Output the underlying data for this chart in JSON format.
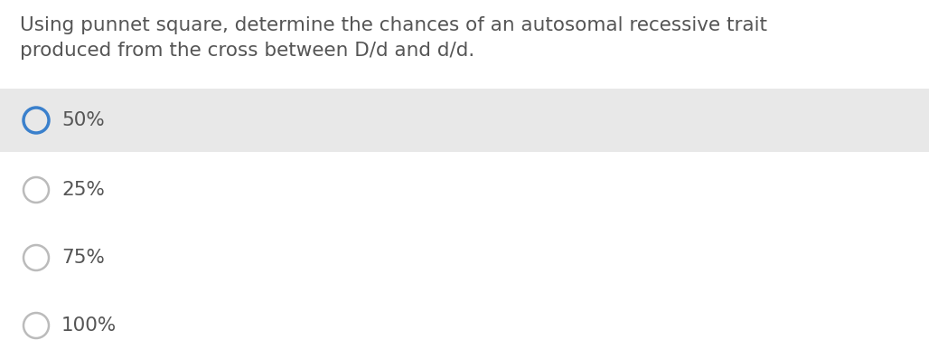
{
  "question_line1": "Using punnet square, determine the chances of an autosomal recessive trait",
  "question_line2": "produced from the cross between D/d and d/d.",
  "options": [
    "50%",
    "25%",
    "75%",
    "100%"
  ],
  "selected_index": 0,
  "background_color": "#ffffff",
  "highlight_color": "#e8e8e8",
  "question_text_color": "#555555",
  "option_text_color": "#555555",
  "selected_circle_color": "#3a80cc",
  "unselected_circle_color": "#bbbbbb",
  "font_size_question": 15.5,
  "font_size_option": 15.5,
  "fig_width": 10.48,
  "fig_height": 3.97,
  "dpi": 100
}
